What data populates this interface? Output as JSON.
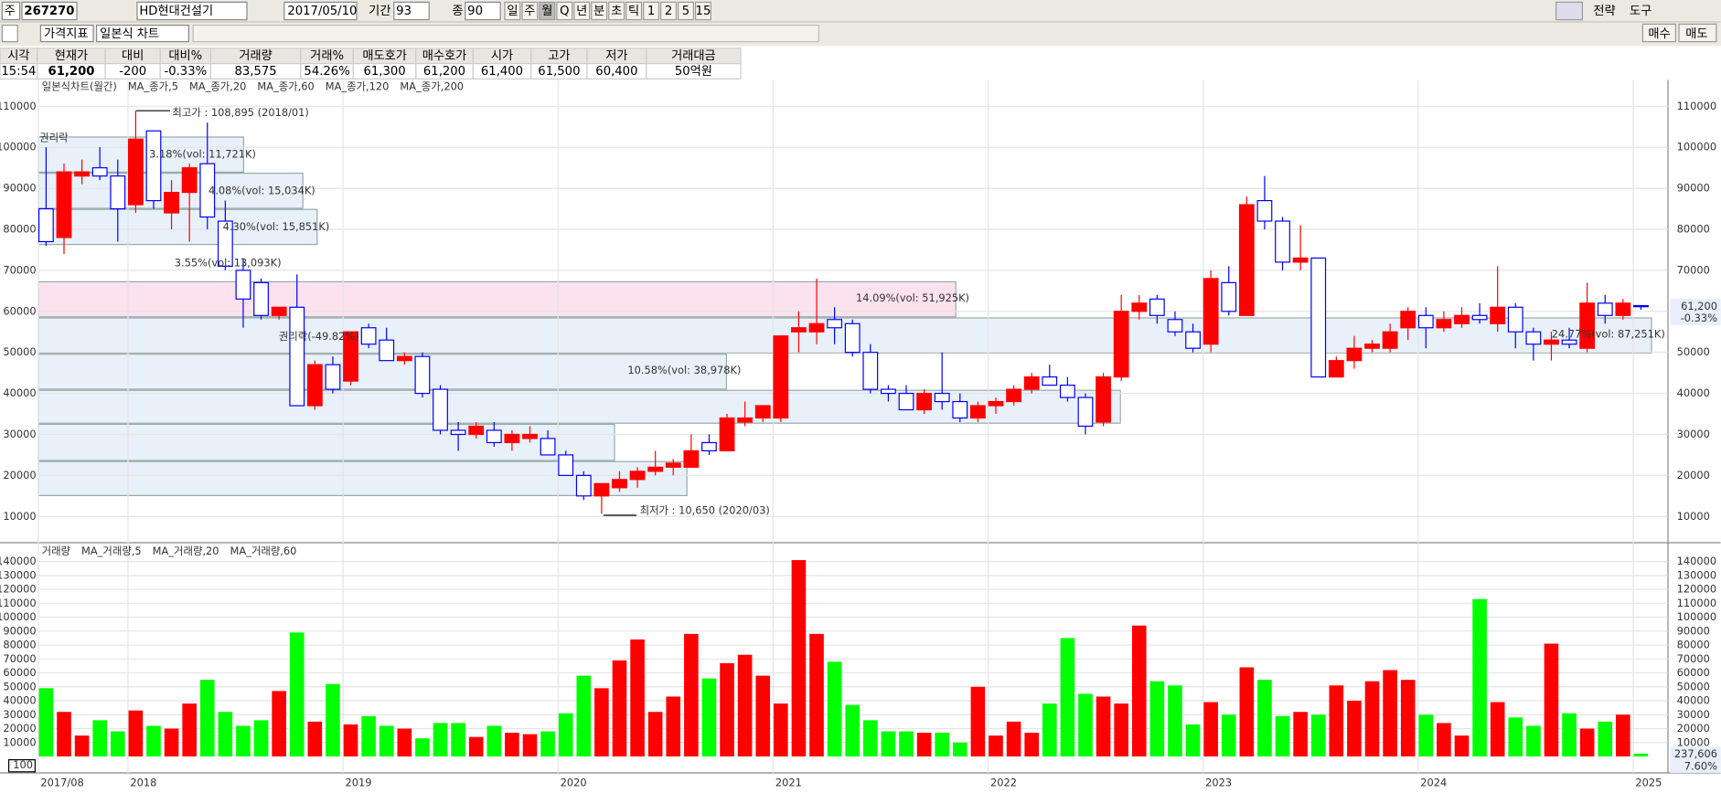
{
  "toolbar": {
    "period_unit": "주",
    "code": "267270",
    "name": "HD현대건설기",
    "date": "2017/05/10",
    "period_label": "기간",
    "period": "93",
    "close_label": "종",
    "close_count": "90",
    "intervals": [
      "일",
      "주",
      "월",
      "Q",
      "년",
      "분",
      "초",
      "틱",
      "1",
      "2",
      "5",
      "15"
    ],
    "indicator": "가격지표",
    "chart_style": "일본식 차트",
    "strategy": "전략",
    "tools": "도구",
    "buy": "매수",
    "sell": "매도"
  },
  "quote": {
    "headers": [
      "시각",
      "현재가",
      "대비",
      "대비%",
      "거래량",
      "거래%",
      "매도호가",
      "매수호가",
      "시가",
      "고가",
      "저가",
      "거래대금"
    ],
    "values": [
      "15:54",
      "61,200",
      "-200",
      "-0.33%",
      "83,575",
      "54.26%",
      "61,300",
      "61,200",
      "61,400",
      "61,500",
      "60,400",
      "50억원"
    ]
  },
  "chart_data": {
    "type": "candlestick",
    "legend": [
      "일본식차트(월간)",
      "MA_종가,5",
      "MA_종가,20",
      "MA_종가,60",
      "MA_종가,120",
      "MA_종가,200"
    ],
    "categories": [
      "2017/08",
      null,
      null,
      null,
      null,
      "2018",
      null,
      null,
      null,
      null,
      null,
      null,
      null,
      null,
      null,
      null,
      null,
      "2019",
      null,
      null,
      null,
      null,
      null,
      null,
      null,
      null,
      null,
      null,
      null,
      "2020",
      null,
      null,
      null,
      null,
      null,
      null,
      null,
      null,
      null,
      null,
      null,
      "2021",
      null,
      null,
      null,
      null,
      null,
      null,
      null,
      null,
      null,
      null,
      null,
      "2022",
      null,
      null,
      null,
      null,
      null,
      null,
      null,
      null,
      null,
      null,
      null,
      "2023",
      null,
      null,
      null,
      null,
      null,
      null,
      null,
      null,
      null,
      null,
      null,
      "2024",
      null,
      null,
      null,
      null,
      null,
      null,
      null,
      null,
      null,
      null,
      null,
      "2025"
    ],
    "candles": [
      [
        85000,
        100000,
        76000,
        77000
      ],
      [
        78000,
        96000,
        74000,
        94000
      ],
      [
        93000,
        97000,
        91000,
        94000
      ],
      [
        95000,
        100000,
        92000,
        93000
      ],
      [
        93000,
        97000,
        77000,
        85000
      ],
      [
        86000,
        108895,
        84000,
        102000
      ],
      [
        104000,
        104000,
        85000,
        87000
      ],
      [
        84000,
        92000,
        80000,
        89000
      ],
      [
        89000,
        96000,
        77000,
        95000
      ],
      [
        96000,
        106000,
        80000,
        83000
      ],
      [
        82000,
        87000,
        70000,
        71000
      ],
      [
        70000,
        73000,
        56000,
        63000
      ],
      [
        67000,
        68000,
        58000,
        59000
      ],
      [
        59000,
        61000,
        58000,
        61000
      ],
      [
        61000,
        69000,
        37000,
        37000
      ],
      [
        37000,
        48000,
        36000,
        47000
      ],
      [
        47000,
        49000,
        40000,
        41000
      ],
      [
        43000,
        55000,
        42000,
        55000
      ],
      [
        56000,
        57000,
        51000,
        52000
      ],
      [
        53000,
        56000,
        48000,
        48000
      ],
      [
        48000,
        50000,
        47000,
        49000
      ],
      [
        49000,
        50000,
        39000,
        40000
      ],
      [
        41000,
        42000,
        30000,
        31000
      ],
      [
        31000,
        33000,
        26000,
        30000
      ],
      [
        30000,
        33000,
        29000,
        32000
      ],
      [
        31000,
        33000,
        27000,
        28000
      ],
      [
        28000,
        31000,
        26000,
        30000
      ],
      [
        29000,
        32000,
        28000,
        30000
      ],
      [
        29000,
        31000,
        25000,
        25000
      ],
      [
        25000,
        26000,
        20000,
        20000
      ],
      [
        20000,
        21000,
        14000,
        15000
      ],
      [
        15000,
        18000,
        10650,
        18000
      ],
      [
        17000,
        21000,
        16000,
        19000
      ],
      [
        19000,
        22000,
        17000,
        21000
      ],
      [
        21000,
        26000,
        20000,
        22000
      ],
      [
        22000,
        24000,
        20000,
        23000
      ],
      [
        22000,
        30000,
        22000,
        26000
      ],
      [
        28000,
        30000,
        25000,
        26000
      ],
      [
        26000,
        35000,
        26000,
        34000
      ],
      [
        33000,
        38000,
        32000,
        34000
      ],
      [
        34000,
        37000,
        33000,
        37000
      ],
      [
        34000,
        54000,
        33000,
        54000
      ],
      [
        55000,
        60000,
        50000,
        56000
      ],
      [
        55000,
        68000,
        52000,
        57000
      ],
      [
        58000,
        61000,
        52000,
        56000
      ],
      [
        57000,
        58000,
        49000,
        50000
      ],
      [
        50000,
        52000,
        40000,
        41000
      ],
      [
        41000,
        42000,
        38000,
        40000
      ],
      [
        40000,
        42000,
        36000,
        36000
      ],
      [
        36000,
        41000,
        35000,
        40000
      ],
      [
        40000,
        50000,
        36000,
        38000
      ],
      [
        38000,
        40000,
        33000,
        34000
      ],
      [
        34000,
        38000,
        33000,
        37000
      ],
      [
        37000,
        39000,
        35000,
        38000
      ],
      [
        38000,
        42000,
        37000,
        41000
      ],
      [
        41000,
        45000,
        40000,
        44000
      ],
      [
        44000,
        47000,
        42000,
        42000
      ],
      [
        42000,
        44000,
        38000,
        39000
      ],
      [
        39000,
        40000,
        30000,
        32000
      ],
      [
        33000,
        45000,
        32000,
        44000
      ],
      [
        44000,
        64000,
        43000,
        60000
      ],
      [
        60000,
        64000,
        58000,
        62000
      ],
      [
        63000,
        64000,
        57000,
        59000
      ],
      [
        58000,
        60000,
        54000,
        55000
      ],
      [
        55000,
        57000,
        50000,
        51000
      ],
      [
        52000,
        70000,
        50000,
        68000
      ],
      [
        67000,
        71000,
        59000,
        60000
      ],
      [
        59000,
        88000,
        59000,
        86000
      ],
      [
        87000,
        93000,
        80000,
        82000
      ],
      [
        82000,
        83000,
        70000,
        72000
      ],
      [
        72000,
        81000,
        70000,
        73000
      ],
      [
        73000,
        73000,
        44000,
        44000
      ],
      [
        44000,
        49000,
        44000,
        48000
      ],
      [
        48000,
        54000,
        46000,
        51000
      ],
      [
        51000,
        53000,
        50000,
        52000
      ],
      [
        51000,
        57000,
        50000,
        55000
      ],
      [
        56000,
        61000,
        53000,
        60000
      ],
      [
        59000,
        61000,
        51000,
        56000
      ],
      [
        56000,
        60000,
        55000,
        58000
      ],
      [
        57000,
        61000,
        56000,
        59000
      ],
      [
        59000,
        62000,
        57000,
        58000
      ],
      [
        57000,
        71000,
        55000,
        61000
      ],
      [
        61000,
        62000,
        51000,
        55000
      ],
      [
        55000,
        56000,
        48000,
        52000
      ],
      [
        52000,
        55000,
        48000,
        53000
      ],
      [
        53000,
        56000,
        51000,
        52000
      ],
      [
        51000,
        67000,
        50000,
        62000
      ],
      [
        62000,
        64000,
        57000,
        59000
      ],
      [
        59000,
        63000,
        58000,
        62000
      ],
      [
        61400,
        61500,
        60400,
        61200
      ]
    ],
    "up_color": "#ff0000",
    "down_color": "#0000ff",
    "ylim": [
      4400,
      117200
    ],
    "yticks": [
      10000,
      20000,
      30000,
      40000,
      50000,
      60000,
      70000,
      80000,
      90000,
      100000,
      110000
    ],
    "last_price": "61,200",
    "last_change": "-0.33%",
    "annotations": [
      "최고가 : 108,895 (2018/01)",
      "최저가 : 10,650 (2020/03)",
      "권리락",
      "권리락(-49.82%)",
      "3.18%(vol: 11,721K)",
      "4.08%(vol: 15,034K)",
      "4.30%(vol: 15,851K)",
      "3.55%(vol: 13,093K)",
      "14.09%(vol: 51,925K)",
      "10.58%(vol: 38,978K)",
      "24.77%(vol: 87,251K)"
    ],
    "volume": {
      "legend": [
        "거래량",
        "MA_거래량,5",
        "MA_거래량,20",
        "MA_거래량,60"
      ],
      "values": [
        49000,
        32000,
        15000,
        26000,
        18000,
        33000,
        22000,
        20000,
        38000,
        55000,
        32000,
        22000,
        26000,
        47000,
        89000,
        25000,
        52000,
        23000,
        29000,
        22000,
        20000,
        13000,
        24000,
        24000,
        14000,
        22000,
        17000,
        16000,
        18000,
        31000,
        58000,
        49000,
        69000,
        84000,
        32000,
        43000,
        88000,
        56000,
        67000,
        73000,
        58000,
        38000,
        141000,
        88000,
        68000,
        37000,
        26000,
        18000,
        18000,
        17000,
        17000,
        10000,
        50000,
        15000,
        25000,
        17000,
        38000,
        85000,
        45000,
        43000,
        38000,
        94000,
        54000,
        51000,
        23000,
        39000,
        30000,
        64000,
        55000,
        29000,
        32000,
        30000,
        51000,
        40000,
        54000,
        62000,
        55000,
        30000,
        24000,
        15000,
        113000,
        39000,
        28000,
        22000,
        81000,
        31000,
        20000,
        25000,
        30000,
        2000
      ],
      "up_color": "#ff0000",
      "down_color": "#00ff00",
      "ylim": [
        0,
        148000
      ],
      "yticks": [
        10000,
        20000,
        30000,
        40000,
        50000,
        60000,
        70000,
        80000,
        90000,
        100000,
        110000,
        120000,
        130000,
        140000
      ],
      "bottom_marker": "100",
      "last_volume": "237,606",
      "last_ratio": "7.60%"
    }
  }
}
